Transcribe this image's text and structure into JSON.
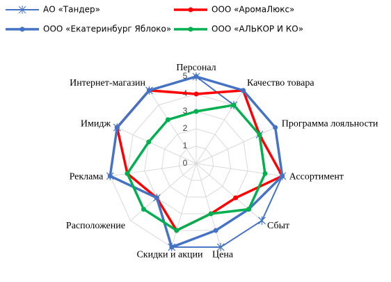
{
  "chart_data": {
    "type": "radar",
    "categories": [
      "Персонал",
      "Качество товара",
      "Программа лояльности",
      "Ассортимент",
      "Сбыт",
      "Цена",
      "Скидки и акции",
      "Расположение",
      "Реклама",
      "Имидж",
      "Интернет-магазин"
    ],
    "series": [
      {
        "name": "АО «Тандер»",
        "color": "#4472c4",
        "marker": "asterisk",
        "values": [
          5,
          4,
          4,
          5,
          5,
          5,
          5,
          3,
          5,
          5,
          5
        ]
      },
      {
        "name": "ООО «АромаЛюкс»",
        "color": "#ff0000",
        "marker": "circle",
        "values": [
          4,
          5,
          4,
          5,
          3,
          3,
          4,
          3,
          4,
          5,
          5
        ]
      },
      {
        "name": "ООО «Екатеринбург Яблоко»",
        "color": "#4472c4",
        "marker": "circle",
        "values": [
          5,
          5,
          5,
          5,
          4,
          4,
          5,
          3,
          5,
          5,
          5
        ]
      },
      {
        "name": "ООО «АЛЬКОР И КО»",
        "color": "#00b050",
        "marker": "circle",
        "values": [
          3,
          4,
          4,
          4,
          4,
          3,
          4,
          4,
          4,
          3,
          3
        ]
      }
    ],
    "rlim": [
      0,
      5
    ],
    "rticks": [
      0,
      1,
      2,
      3,
      4,
      5
    ],
    "grid": true
  }
}
